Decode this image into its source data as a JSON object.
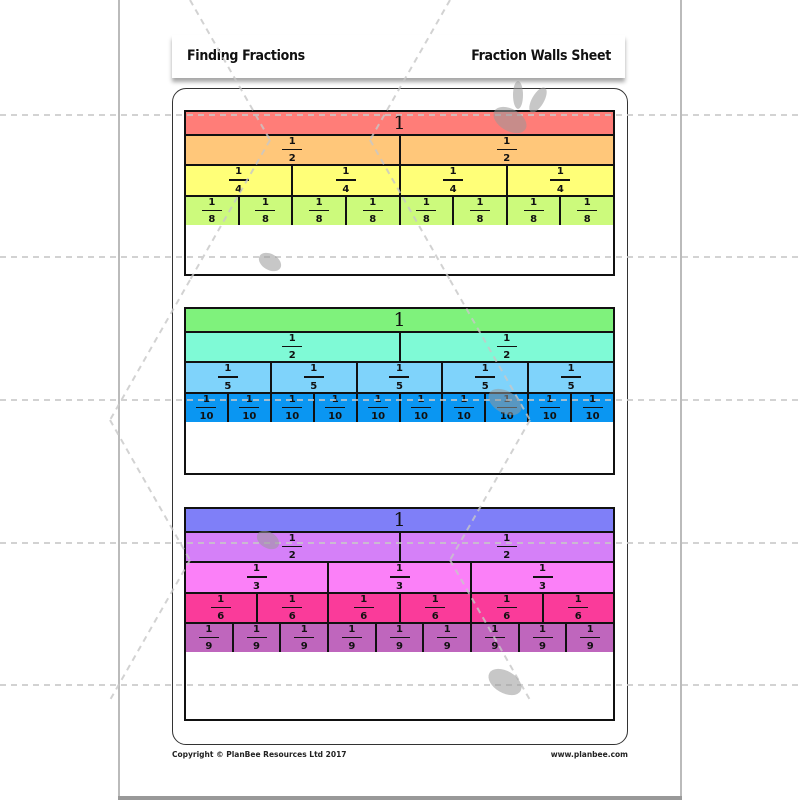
{
  "header": {
    "left_title": "Finding Fractions",
    "right_title": "Fraction Walls Sheet"
  },
  "walls": [
    {
      "rows": [
        {
          "label": "1",
          "count": 1,
          "color": "#ff7d78"
        },
        {
          "numerator": "1",
          "denominator": "2",
          "count": 2,
          "color": "#ffc77a"
        },
        {
          "numerator": "1",
          "denominator": "4",
          "count": 4,
          "color": "#ffff78"
        },
        {
          "numerator": "1",
          "denominator": "8",
          "count": 8,
          "color": "#ccfa7c"
        }
      ]
    },
    {
      "rows": [
        {
          "label": "1",
          "count": 1,
          "color": "#7ff27c"
        },
        {
          "numerator": "1",
          "denominator": "2",
          "count": 2,
          "color": "#7ffad6"
        },
        {
          "numerator": "1",
          "denominator": "5",
          "count": 5,
          "color": "#7fd3fb"
        },
        {
          "numerator": "1",
          "denominator": "10",
          "count": 10,
          "color": "#0a96f2"
        }
      ]
    },
    {
      "rows": [
        {
          "label": "1",
          "count": 1,
          "color": "#7f7ff8"
        },
        {
          "numerator": "1",
          "denominator": "2",
          "count": 2,
          "color": "#d580f8"
        },
        {
          "numerator": "1",
          "denominator": "3",
          "count": 3,
          "color": "#fb80f8"
        },
        {
          "numerator": "1",
          "denominator": "6",
          "count": 6,
          "color": "#fa3b9a"
        },
        {
          "numerator": "1",
          "denominator": "9",
          "count": 9,
          "color": "#bf66bd"
        }
      ]
    }
  ],
  "footer": {
    "copyright": "Copyright © PlanBee Resources Ltd 2017",
    "website": "www.planbee.com"
  }
}
